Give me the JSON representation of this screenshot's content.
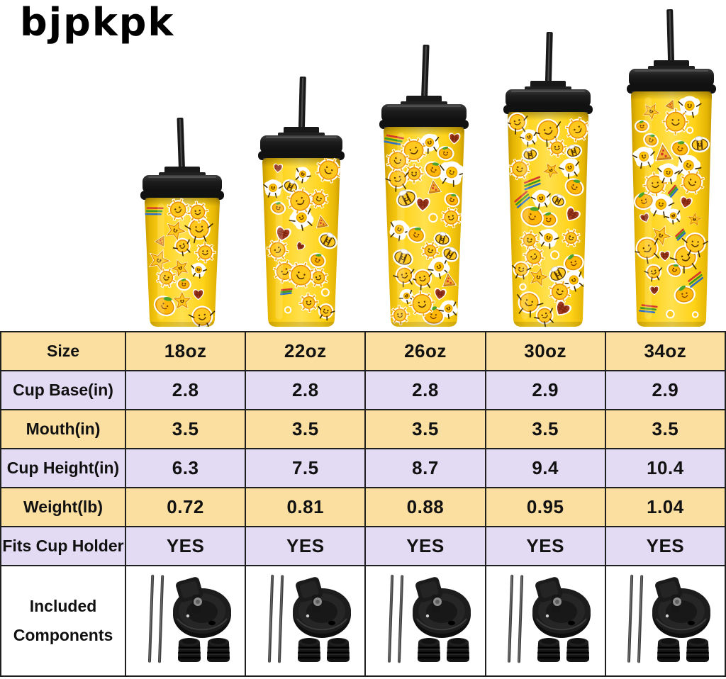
{
  "brand": {
    "logo": "bjpkpk"
  },
  "lineup": {
    "description": "Five yellow tumblers covered in cartoon smiley stickers, each with black lid and black straw, shown smallest to largest",
    "sizes": [
      "18oz",
      "22oz",
      "26oz",
      "30oz",
      "34oz"
    ]
  },
  "table": {
    "rows": [
      {
        "label": "Size",
        "values": [
          "18oz",
          "22oz",
          "26oz",
          "30oz",
          "34oz"
        ]
      },
      {
        "label": "Cup Base(in)",
        "values": [
          "2.8",
          "2.8",
          "2.8",
          "2.9",
          "2.9"
        ]
      },
      {
        "label": "Mouth(in)",
        "values": [
          "3.5",
          "3.5",
          "3.5",
          "3.5",
          "3.5"
        ]
      },
      {
        "label": "Cup Height(in)",
        "values": [
          "6.3",
          "7.5",
          "8.7",
          "9.4",
          "10.4"
        ]
      },
      {
        "label": "Weight(lb)",
        "values": [
          "0.72",
          "0.81",
          "0.88",
          "0.95",
          "1.04"
        ]
      },
      {
        "label": "Fits Cup Holder",
        "values": [
          "YES",
          "YES",
          "YES",
          "YES",
          "YES"
        ]
      }
    ],
    "components": {
      "label": "Included Components",
      "pictured_items": [
        "2 straws",
        "1 flip lid",
        "2 plug caps"
      ]
    }
  },
  "colors": {
    "row_yellow": "#FBDFA0",
    "row_lavender": "#E3DBF3",
    "table_border": "#1f1f1f",
    "cup_yellow": "#FFD318",
    "lid_black": "#1c1c1c",
    "background": "#ffffff"
  }
}
